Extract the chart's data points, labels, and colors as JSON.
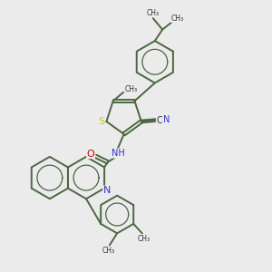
{
  "bg_color": "#ebebeb",
  "figsize": [
    3.0,
    3.0
  ],
  "dpi": 100,
  "bond_color": "#4a6741",
  "bond_lw": 1.4,
  "atom_colors": {
    "S": "#cccc00",
    "N": "#3333cc",
    "O": "#cc0000",
    "C": "#333333"
  },
  "xlim": [
    0,
    10
  ],
  "ylim": [
    0,
    10
  ]
}
